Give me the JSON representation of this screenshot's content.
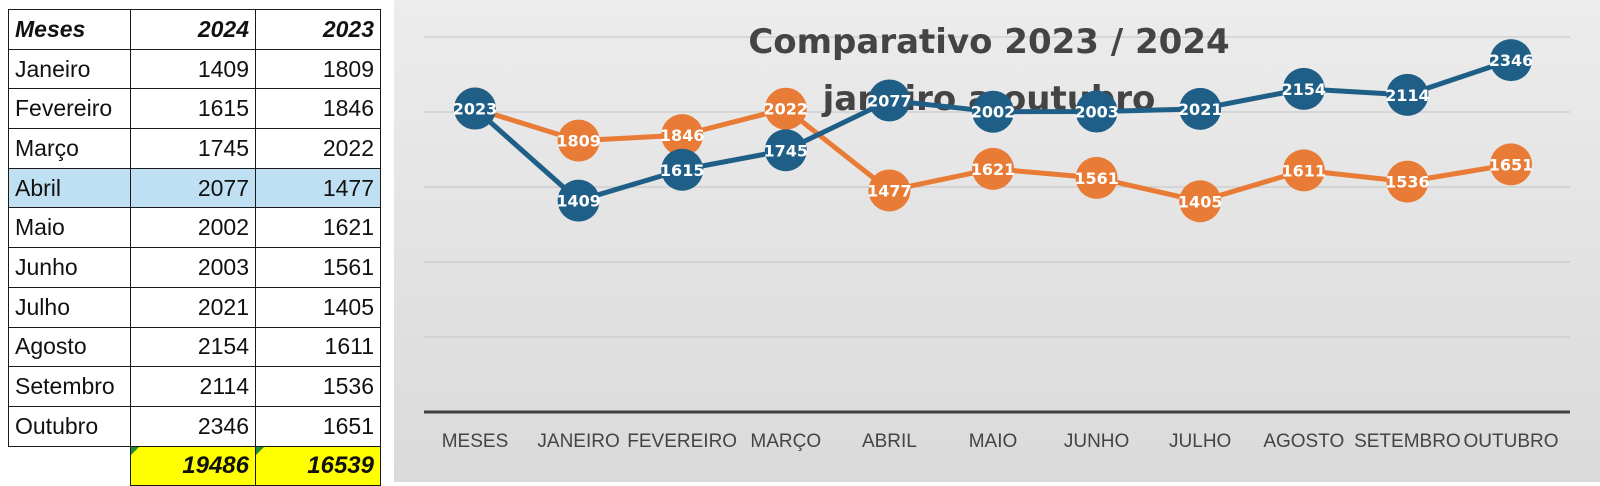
{
  "table": {
    "headers": [
      "Meses",
      "2024",
      "2023"
    ],
    "rows": [
      {
        "month": "Janeiro",
        "y2024": "1409",
        "y2023": "1809"
      },
      {
        "month": "Fevereiro",
        "y2024": "1615",
        "y2023": "1846"
      },
      {
        "month": "Março",
        "y2024": "1745",
        "y2023": "2022"
      },
      {
        "month": "Abril",
        "y2024": "2077",
        "y2023": "1477"
      },
      {
        "month": "Maio",
        "y2024": "2002",
        "y2023": "1621"
      },
      {
        "month": "Junho",
        "y2024": "2003",
        "y2023": "1561"
      },
      {
        "month": "Julho",
        "y2024": "2021",
        "y2023": "1405"
      },
      {
        "month": "Agosto",
        "y2024": "2154",
        "y2023": "1611"
      },
      {
        "month": "Setembro",
        "y2024": "2114",
        "y2023": "1536"
      },
      {
        "month": "Outubro",
        "y2024": "2346",
        "y2023": "1651"
      }
    ],
    "selected_row": 3,
    "totals": {
      "y2024": "19486",
      "y2023": "16539"
    }
  },
  "chart_data": {
    "type": "line",
    "title": [
      "Comparativo 2023 / 2024",
      "janeiro a outubro"
    ],
    "categories": [
      "MESES",
      "JANEIRO",
      "FEVEREIRO",
      "MARÇO",
      "ABRIL",
      "MAIO",
      "JUNHO",
      "JULHO",
      "AGOSTO",
      "SETEMBRO",
      "OUTUBRO"
    ],
    "series": [
      {
        "color": "#1f5f87",
        "values": [
          2023,
          1409,
          1615,
          1745,
          2077,
          2002,
          2003,
          2021,
          2154,
          2114,
          2346
        ]
      },
      {
        "color": "#e87b36",
        "values": [
          2023,
          1809,
          1846,
          2022,
          1477,
          1621,
          1561,
          1405,
          1611,
          1536,
          1651
        ]
      }
    ],
    "ylim": [
      0,
      2500
    ],
    "grid": true,
    "legend": "none"
  }
}
